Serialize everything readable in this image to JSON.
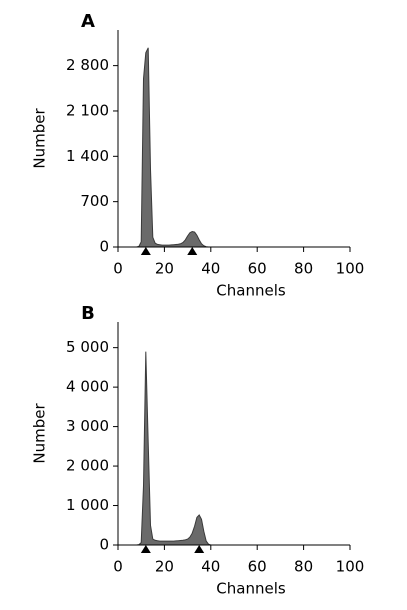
{
  "chart_data": [
    {
      "type": "area",
      "panel_label": "A",
      "x_label": "Channels",
      "y_label": "Number",
      "color": "#6a6a6a",
      "x": [
        8,
        9,
        10,
        11,
        12,
        13,
        14,
        15,
        16,
        17,
        18,
        19,
        20,
        21,
        22,
        23,
        24,
        25,
        26,
        27,
        28,
        29,
        30,
        31,
        32,
        33,
        34,
        35,
        36,
        37,
        38,
        39,
        40
      ],
      "values": [
        0,
        10,
        80,
        2600,
        3000,
        3075,
        1200,
        150,
        60,
        40,
        35,
        30,
        30,
        30,
        30,
        32,
        35,
        38,
        42,
        50,
        70,
        110,
        170,
        220,
        240,
        230,
        180,
        110,
        50,
        20,
        5,
        0,
        0
      ],
      "gate_markers": [
        12,
        32
      ],
      "xlim": [
        0,
        100
      ],
      "xticks": [
        0,
        20,
        40,
        60,
        80,
        100
      ],
      "ylim": [
        0,
        3350
      ],
      "yticks": [
        0,
        700,
        {
          "value": 1400,
          "label": "1 400"
        },
        {
          "value": 2100,
          "label": "2 100"
        },
        {
          "value": 2800,
          "label": "2 800"
        }
      ]
    },
    {
      "type": "area",
      "panel_label": "B",
      "x_label": "Channels",
      "y_label": "Number",
      "color": "#6a6a6a",
      "x": [
        8,
        9,
        10,
        11,
        12,
        13,
        14,
        15,
        16,
        17,
        18,
        19,
        20,
        21,
        22,
        23,
        24,
        25,
        26,
        27,
        28,
        29,
        30,
        31,
        32,
        33,
        34,
        35,
        36,
        37,
        38,
        39,
        40
      ],
      "values": [
        0,
        10,
        60,
        1500,
        4900,
        2600,
        500,
        150,
        120,
        110,
        100,
        100,
        100,
        100,
        100,
        100,
        100,
        105,
        110,
        115,
        120,
        130,
        150,
        200,
        300,
        480,
        700,
        760,
        650,
        350,
        100,
        20,
        0
      ],
      "gate_markers": [
        12,
        35
      ],
      "xlim": [
        0,
        100
      ],
      "xticks": [
        0,
        20,
        40,
        60,
        80,
        100
      ],
      "ylim": [
        0,
        5650
      ],
      "yticks": [
        0,
        {
          "value": 1000,
          "label": "1 000"
        },
        {
          "value": 2000,
          "label": "2 000"
        },
        {
          "value": 3000,
          "label": "3 000"
        },
        {
          "value": 4000,
          "label": "4 000"
        },
        {
          "value": 5000,
          "label": "5 000"
        }
      ]
    }
  ]
}
